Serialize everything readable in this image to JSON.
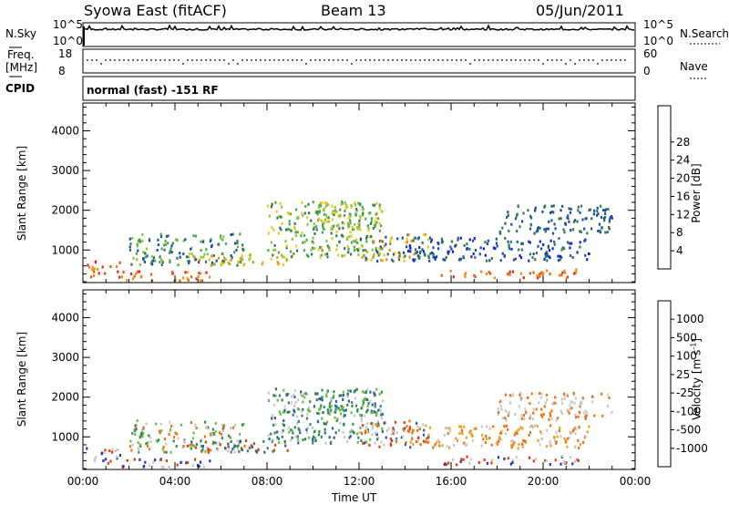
{
  "header": {
    "station": "Syowa East (fitACF)",
    "beam": "Beam 13",
    "date": "05/Jun/2011"
  },
  "top_panels": {
    "nsky_label": "N.Sky",
    "nsearch_label": "N.Search",
    "noise_ticks": [
      "10^5",
      "10^0"
    ],
    "noise_ticks_right": [
      "10^5",
      "10^0"
    ],
    "freq_label": "Freq.",
    "freq_unit": "[MHz]",
    "freq_ticks": [
      "18",
      "8"
    ],
    "nave_label": "Nave",
    "nave_ticks": [
      "60",
      "0"
    ],
    "cpid_label": "CPID",
    "cpid_text": "normal (fast) -151 RF"
  },
  "chart_data": [
    {
      "type": "heatmap",
      "name": "power",
      "ylabel": "Slant Range [km]",
      "xlabel": "Time UT",
      "x_ticks": [
        "00:00",
        "04:00",
        "08:00",
        "12:00",
        "16:00",
        "20:00",
        "00:00"
      ],
      "y_ticks": [
        1000,
        2000,
        3000,
        4000
      ],
      "ylim": [
        180,
        4700
      ],
      "xlim_hours": [
        0,
        24
      ],
      "colorbar_label": "Power [dB]",
      "colorbar_ticks": [
        4,
        8,
        12,
        16,
        20,
        24,
        28
      ],
      "colorbar_colors": [
        "#0b1fe6",
        "#1a4fa8",
        "#2f7a55",
        "#4da84a",
        "#8cc63f",
        "#e8c81a",
        "#f08a10",
        "#e85a08",
        "#e0200a"
      ]
    },
    {
      "type": "heatmap",
      "name": "velocity",
      "ylabel": "Slant Range [km]",
      "xlabel": "Time UT",
      "x_ticks": [
        "00:00",
        "04:00",
        "08:00",
        "12:00",
        "16:00",
        "20:00",
        "00:00"
      ],
      "y_ticks": [
        1000,
        2000,
        3000,
        4000
      ],
      "ylim": [
        180,
        4700
      ],
      "xlim_hours": [
        0,
        24
      ],
      "colorbar_label": "Velocity [m s",
      "colorbar_label_sup": "-1",
      "colorbar_label_end": "]",
      "colorbar_ticks": [
        "1000",
        "500",
        "100",
        "25",
        "-25",
        "-100",
        "-500",
        "-1000"
      ],
      "colorbar_colors": [
        "#1a35b8",
        "#2b5fa0",
        "#2f8a5a",
        "#6cc040",
        "#c8c8c8",
        "#f0a020",
        "#f07010",
        "#e83a0a",
        "#e0100a"
      ]
    }
  ]
}
